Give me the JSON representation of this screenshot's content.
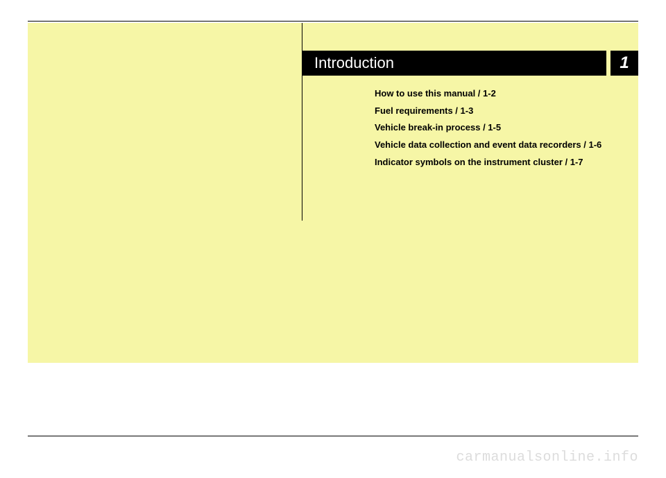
{
  "chapter": {
    "title": "Introduction",
    "number": "1"
  },
  "toc": {
    "items": [
      "How to use this manual / 1-2",
      "Fuel requirements / 1-3",
      "Vehicle break-in process / 1-5",
      "Vehicle data collection and event data recorders / 1-6",
      "Indicator symbols on the instrument cluster / 1-7"
    ]
  },
  "watermark": "carmanualsonline.info",
  "colors": {
    "panel": "#f6f6a6",
    "header_bg": "#000000",
    "header_text": "#ffffff",
    "text": "#000000",
    "watermark": "#dcdcdc"
  }
}
